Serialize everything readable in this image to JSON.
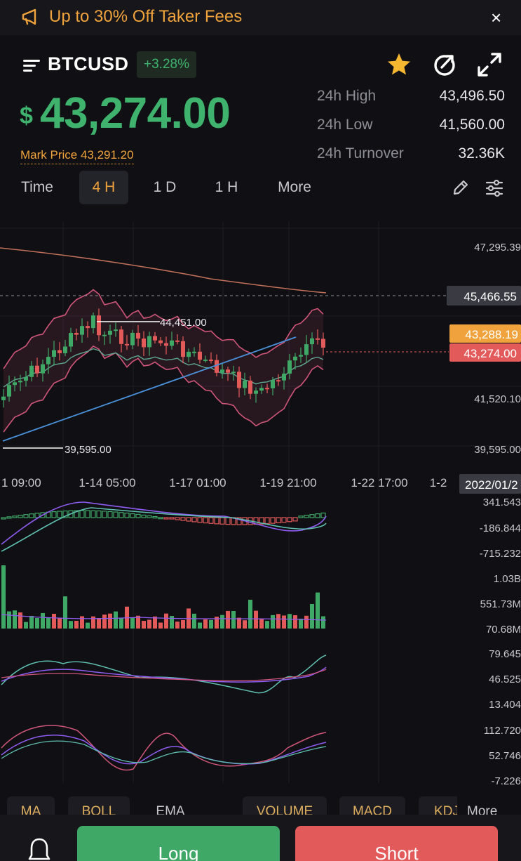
{
  "banner": {
    "text": "Up to 30% Off Taker Fees",
    "close": "×"
  },
  "header": {
    "symbol": "BTCUSD",
    "change": "+3.28%"
  },
  "price": {
    "currency": "$",
    "value": "43,274.00",
    "mark_price": "Mark Price 43,291.20"
  },
  "stats": [
    {
      "label": "24h High",
      "value": "43,496.50"
    },
    {
      "label": "24h Low",
      "value": "41,560.00"
    },
    {
      "label": "24h Turnover",
      "value": "32.36K"
    }
  ],
  "timeframes": [
    {
      "label": "Time",
      "active": false
    },
    {
      "label": "4 H",
      "active": true
    },
    {
      "label": "1 D",
      "active": false
    },
    {
      "label": "1 H",
      "active": false
    },
    {
      "label": "More",
      "active": false
    }
  ],
  "chart_labels": {
    "high_marker": "44,451.00",
    "low_marker": "39,595.00",
    "crosshair_price": "45,466.55",
    "mark_price_tag": "43,288.19",
    "last_price_tag": "43,274.00",
    "date_tag": "2022/01/2"
  },
  "chart_data": {
    "type": "candlestick",
    "price_axis": [
      "47,295.39",
      "41,520.10",
      "39,595.00"
    ],
    "time_axis": [
      "1 09:00",
      "1-14 05:00",
      "1-17 01:00",
      "1-19 21:00",
      "1-22 17:00",
      "1-2"
    ],
    "indicators": {
      "MACD": [
        "341.543",
        "-186.844",
        "-715.232"
      ],
      "VOLUME": [
        "1.03B",
        "551.73M",
        "70.68M"
      ],
      "KDJ": [
        "79.645",
        "46.525",
        "13.404"
      ],
      "WR": [
        "112.720",
        "52.746",
        "-7.226"
      ]
    },
    "colors": {
      "up": "#3fa866",
      "down": "#e35a5a",
      "bollinger": "#d0557a",
      "trend": "#4a90d9",
      "ma_long": "#c0705a"
    }
  },
  "indicator_tabs": [
    "MA",
    "BOLL",
    "EMA",
    "VOLUME",
    "MACD",
    "KDJ"
  ],
  "indicator_more": "More",
  "actions": {
    "long": "Long",
    "short": "Short"
  }
}
